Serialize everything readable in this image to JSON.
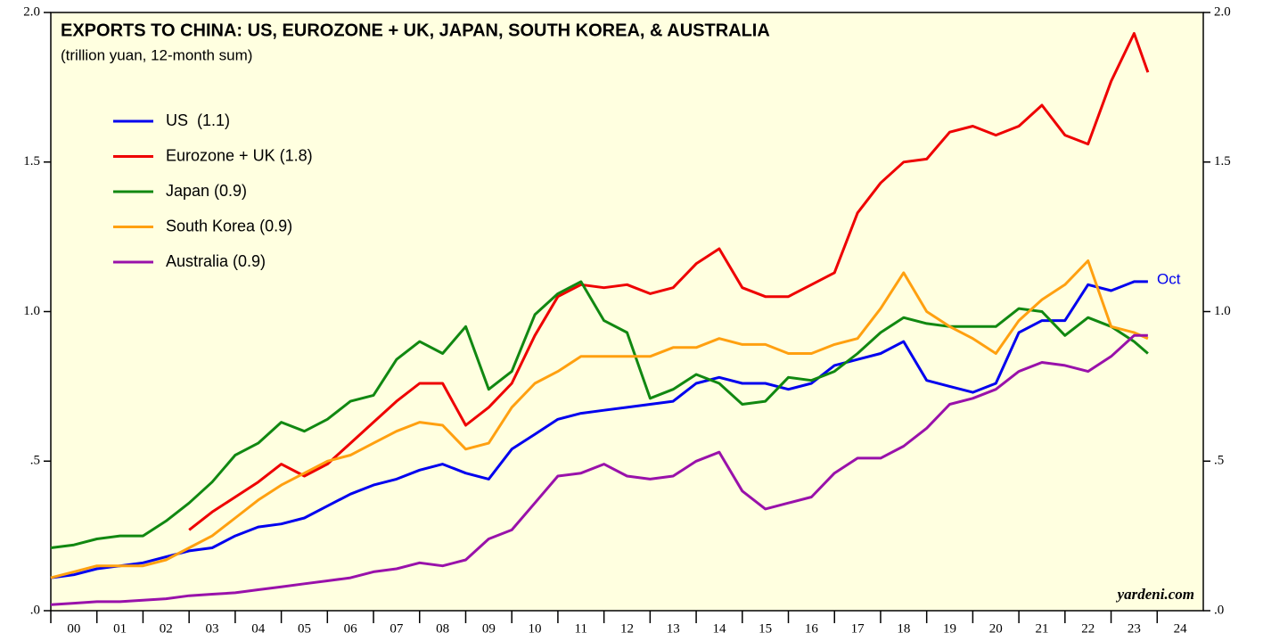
{
  "chart_data": {
    "type": "line",
    "title": "EXPORTS TO CHINA: US, EUROZONE + UK, JAPAN, SOUTH KOREA, & AUSTRALIA",
    "subtitle": "(trillion yuan, 12-month sum)",
    "annotations": [
      "Oct",
      "yardeni.com"
    ],
    "x": [
      2000,
      2000.5,
      2001,
      2001.5,
      2002,
      2002.5,
      2003,
      2003.5,
      2004,
      2004.5,
      2005,
      2005.5,
      2006,
      2006.5,
      2007,
      2007.5,
      2008,
      2008.5,
      2009,
      2009.5,
      2010,
      2010.5,
      2011,
      2011.5,
      2012,
      2012.5,
      2013,
      2013.5,
      2014,
      2014.5,
      2015,
      2015.5,
      2016,
      2016.5,
      2017,
      2017.5,
      2018,
      2018.5,
      2019,
      2019.5,
      2020,
      2020.5,
      2021,
      2021.5,
      2022,
      2022.5,
      2023,
      2023.5,
      2023.8
    ],
    "xlim": [
      2000,
      2025
    ],
    "xticks": [
      {
        "value": 2000,
        "label": "00"
      },
      {
        "value": 2001,
        "label": "01"
      },
      {
        "value": 2002,
        "label": "02"
      },
      {
        "value": 2003,
        "label": "03"
      },
      {
        "value": 2004,
        "label": "04"
      },
      {
        "value": 2005,
        "label": "05"
      },
      {
        "value": 2006,
        "label": "06"
      },
      {
        "value": 2007,
        "label": "07"
      },
      {
        "value": 2008,
        "label": "08"
      },
      {
        "value": 2009,
        "label": "09"
      },
      {
        "value": 2010,
        "label": "10"
      },
      {
        "value": 2011,
        "label": "11"
      },
      {
        "value": 2012,
        "label": "12"
      },
      {
        "value": 2013,
        "label": "13"
      },
      {
        "value": 2014,
        "label": "14"
      },
      {
        "value": 2015,
        "label": "15"
      },
      {
        "value": 2016,
        "label": "16"
      },
      {
        "value": 2017,
        "label": "17"
      },
      {
        "value": 2018,
        "label": "18"
      },
      {
        "value": 2019,
        "label": "19"
      },
      {
        "value": 2020,
        "label": "20"
      },
      {
        "value": 2021,
        "label": "21"
      },
      {
        "value": 2022,
        "label": "22"
      },
      {
        "value": 2023,
        "label": "23"
      },
      {
        "value": 2024,
        "label": "24"
      }
    ],
    "ylim": [
      0,
      2.0
    ],
    "yticks": [
      {
        "value": 0,
        "label": ".0"
      },
      {
        "value": 0.5,
        "label": ".5"
      },
      {
        "value": 1.0,
        "label": "1.0"
      },
      {
        "value": 1.5,
        "label": "1.5"
      },
      {
        "value": 2.0,
        "label": "2.0"
      }
    ],
    "legend": "upper left",
    "series": [
      {
        "name": "US  (1.1)",
        "color": "#0000ee",
        "values": [
          0.11,
          0.12,
          0.14,
          0.15,
          0.16,
          0.18,
          0.2,
          0.21,
          0.25,
          0.28,
          0.29,
          0.31,
          0.35,
          0.39,
          0.42,
          0.44,
          0.47,
          0.49,
          0.46,
          0.44,
          0.54,
          0.59,
          0.64,
          0.66,
          0.67,
          0.68,
          0.69,
          0.7,
          0.76,
          0.78,
          0.76,
          0.76,
          0.74,
          0.76,
          0.82,
          0.84,
          0.86,
          0.9,
          0.77,
          0.75,
          0.73,
          0.76,
          0.93,
          0.97,
          0.97,
          1.09,
          1.07,
          1.1,
          1.1
        ]
      },
      {
        "name": "Eurozone + UK (1.8)",
        "color": "#ee0000",
        "values": [
          null,
          null,
          null,
          null,
          null,
          null,
          0.27,
          0.33,
          0.38,
          0.43,
          0.49,
          0.45,
          0.49,
          0.56,
          0.63,
          0.7,
          0.76,
          0.76,
          0.62,
          0.68,
          0.76,
          0.92,
          1.05,
          1.09,
          1.08,
          1.09,
          1.06,
          1.08,
          1.16,
          1.21,
          1.08,
          1.05,
          1.05,
          1.09,
          1.13,
          1.33,
          1.43,
          1.5,
          1.51,
          1.6,
          1.62,
          1.59,
          1.62,
          1.69,
          1.59,
          1.56,
          1.77,
          1.93,
          1.8
        ]
      },
      {
        "name": "Japan (0.9)",
        "color": "#118811",
        "values": [
          0.21,
          0.22,
          0.24,
          0.25,
          0.25,
          0.3,
          0.36,
          0.43,
          0.52,
          0.56,
          0.63,
          0.6,
          0.64,
          0.7,
          0.72,
          0.84,
          0.9,
          0.86,
          0.95,
          0.74,
          0.8,
          0.99,
          1.06,
          1.1,
          0.97,
          0.93,
          0.71,
          0.74,
          0.79,
          0.76,
          0.69,
          0.7,
          0.78,
          0.77,
          0.8,
          0.86,
          0.93,
          0.98,
          0.96,
          0.95,
          0.95,
          0.95,
          1.01,
          1.0,
          0.92,
          0.98,
          0.95,
          0.9,
          0.86
        ]
      },
      {
        "name": "South Korea (0.9)",
        "color": "#ffa010",
        "values": [
          0.11,
          0.13,
          0.15,
          0.15,
          0.15,
          0.17,
          0.21,
          0.25,
          0.31,
          0.37,
          0.42,
          0.46,
          0.5,
          0.52,
          0.56,
          0.6,
          0.63,
          0.62,
          0.54,
          0.56,
          0.68,
          0.76,
          0.8,
          0.85,
          0.85,
          0.85,
          0.85,
          0.88,
          0.88,
          0.91,
          0.89,
          0.89,
          0.86,
          0.86,
          0.89,
          0.91,
          1.01,
          1.13,
          1.0,
          0.95,
          0.91,
          0.86,
          0.97,
          1.04,
          1.09,
          1.17,
          0.95,
          0.93,
          0.91
        ]
      },
      {
        "name": "Australia (0.9)",
        "color": "#9911aa",
        "values": [
          0.02,
          0.025,
          0.03,
          0.03,
          0.035,
          0.04,
          0.05,
          0.055,
          0.06,
          0.07,
          0.08,
          0.09,
          0.1,
          0.11,
          0.13,
          0.14,
          0.16,
          0.15,
          0.17,
          0.24,
          0.27,
          0.36,
          0.45,
          0.46,
          0.49,
          0.45,
          0.44,
          0.45,
          0.5,
          0.53,
          0.4,
          0.34,
          0.36,
          0.38,
          0.46,
          0.51,
          0.51,
          0.55,
          0.61,
          0.69,
          0.71,
          0.74,
          0.8,
          0.83,
          0.82,
          0.8,
          0.85,
          0.92,
          0.92
        ]
      }
    ]
  }
}
